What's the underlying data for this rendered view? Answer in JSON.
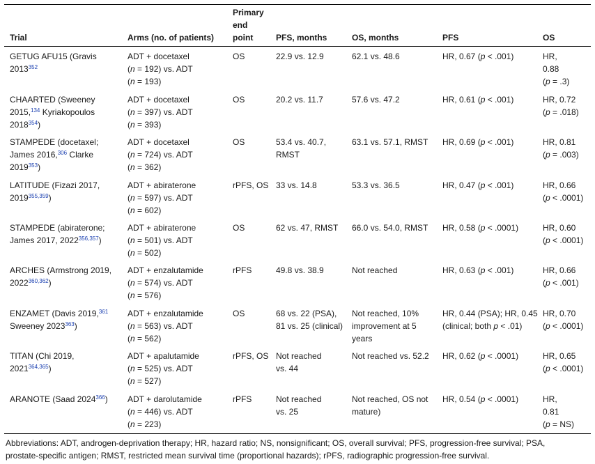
{
  "header": {
    "trial": "Trial",
    "arms": "Arms (no. of patients)",
    "endpoint": [
      "Primary",
      "end",
      "point"
    ],
    "pfs_months": "PFS, months",
    "os_months": "OS, months",
    "pfs": "PFS",
    "os": "OS"
  },
  "rows": [
    {
      "trial": [
        "GETUG AFU15 (Gravis",
        "2013",
        "352"
      ],
      "arms": [
        "ADT + docetaxel",
        "n",
        " = 192) vs. ADT",
        "n",
        " = 193)"
      ],
      "endpoint": "OS",
      "pfs_months": "22.9 vs. 12.9",
      "os_months": "62.1 vs. 48.6",
      "pfs": [
        "HR, 0.67 (",
        "p",
        " < .001)"
      ],
      "os": [
        "HR,",
        "0.88",
        "p",
        " = .3)"
      ]
    },
    {
      "trial": [
        "CHAARTED (Sweeney",
        "2015,",
        "134",
        " Kyriakopoulos",
        "2018",
        "354",
        ")"
      ],
      "arms": [
        "ADT + docetaxel",
        "n",
        " = 397) vs. ADT",
        "n",
        " = 393)"
      ],
      "endpoint": "OS",
      "pfs_months": "20.2 vs. 11.7",
      "os_months": "57.6 vs. 47.2",
      "pfs": [
        "HR, 0.61 (",
        "p",
        " < .001)"
      ],
      "os": [
        "HR, 0.72",
        "p",
        " = .018)"
      ]
    },
    {
      "trial": [
        "STAMPEDE (docetaxel;",
        "James 2016,",
        "306",
        " Clarke",
        "2019",
        "353",
        ")"
      ],
      "arms": [
        "ADT + docetaxel",
        "n",
        " = 724) vs. ADT",
        "n",
        " = 362)"
      ],
      "endpoint": "OS",
      "pfs_months": [
        "53.4 vs. 40.7,",
        "RMST"
      ],
      "os_months": "63.1 vs. 57.1, RMST",
      "pfs": [
        "HR, 0.69 (",
        "p",
        " < .001)"
      ],
      "os": [
        "HR, 0.81",
        "p",
        " = .003)"
      ]
    },
    {
      "trial": [
        "LATITUDE (Fizazi 2017,",
        "2019",
        "355,359",
        ")"
      ],
      "arms": [
        "ADT + abiraterone",
        "n",
        " = 597) vs. ADT",
        "n",
        " = 602)"
      ],
      "endpoint": "rPFS, OS",
      "pfs_months": "33 vs. 14.8",
      "os_months": "53.3 vs. 36.5",
      "pfs": [
        "HR, 0.47 (",
        "p",
        " < .001)"
      ],
      "os": [
        "HR, 0.66",
        "p",
        " < .0001)"
      ]
    },
    {
      "trial": [
        "STAMPEDE (abiraterone;",
        "James 2017, 2022",
        "356,357",
        ")"
      ],
      "arms": [
        "ADT + abiraterone",
        "n",
        " = 501) vs. ADT",
        "n",
        " = 502)"
      ],
      "endpoint": "OS",
      "pfs_months": "62 vs. 47, RMST",
      "os_months": "66.0 vs. 54.0, RMST",
      "pfs": [
        "HR, 0.58 (",
        "p",
        " < .0001)"
      ],
      "os": [
        "HR, 0.60",
        "p",
        " < .0001)"
      ]
    },
    {
      "trial": [
        "ARCHES (Armstrong 2019,",
        "2022",
        "360,362",
        ")"
      ],
      "arms": [
        "ADT + enzalutamide",
        "n",
        " = 574) vs. ADT",
        "n",
        " = 576)"
      ],
      "endpoint": "rPFS",
      "pfs_months": "49.8 vs. 38.9",
      "os_months": "Not reached",
      "pfs": [
        "HR, 0.63 (",
        "p",
        " < .001)"
      ],
      "os": [
        "HR, 0.66",
        "p",
        " < .001)"
      ]
    },
    {
      "trial": [
        "ENZAMET (Davis 2019,",
        "361",
        "Sweeney 2023",
        "363",
        ")"
      ],
      "arms": [
        "ADT + enzalutamide",
        "n",
        " = 563) vs. ADT",
        "n",
        " = 562)"
      ],
      "endpoint": "OS",
      "pfs_months": [
        "68 vs. 22 (PSA),",
        "81 vs. 25 (clinical)"
      ],
      "os_months": [
        "Not reached, 10%",
        "improvement at 5",
        "years"
      ],
      "pfs": [
        "HR, 0.44 (PSA); HR, 0.45",
        "(clinical; both ",
        "p",
        " < .01)"
      ],
      "os": [
        "HR, 0.70",
        "p",
        " < .0001)"
      ]
    },
    {
      "trial": [
        "TITAN (Chi 2019,",
        "2021",
        "364,365",
        ")"
      ],
      "arms": [
        "ADT + apalutamide",
        "n",
        " = 525) vs. ADT",
        "n",
        " = 527)"
      ],
      "endpoint": "rPFS, OS",
      "pfs_months": [
        "Not reached",
        "vs. 44"
      ],
      "os_months": "Not reached vs. 52.2",
      "pfs": [
        "HR, 0.62 (",
        "p",
        " < .0001)"
      ],
      "os": [
        "HR, 0.65",
        "p",
        " < .0001)"
      ]
    },
    {
      "trial": [
        "ARANOTE (Saad 2024",
        "366",
        ")"
      ],
      "arms": [
        "ADT + darolutamide",
        "n",
        " = 446) vs. ADT",
        "n",
        " = 223)"
      ],
      "endpoint": "rPFS",
      "pfs_months": [
        "Not reached",
        "vs. 25"
      ],
      "os_months": [
        "Not reached, OS not",
        "mature)"
      ],
      "pfs": [
        "HR, 0.54 (",
        "p",
        " < .0001)"
      ],
      "os": [
        "HR,",
        "0.81",
        "p",
        " = NS)"
      ]
    }
  ],
  "footnote": [
    "Abbreviations: ADT, androgen-deprivation therapy; HR, hazard ratio; NS, nonsignificant; OS, overall survival; PFS, progression-free survival; PSA,",
    "prostate-specific antigen; RMST, restricted mean survival time (proportional hazards); rPFS, radiographic progression-free survival."
  ],
  "colors": {
    "ref": "#1a3fb0",
    "rule": "#000000",
    "text": "#1a1a1a"
  }
}
